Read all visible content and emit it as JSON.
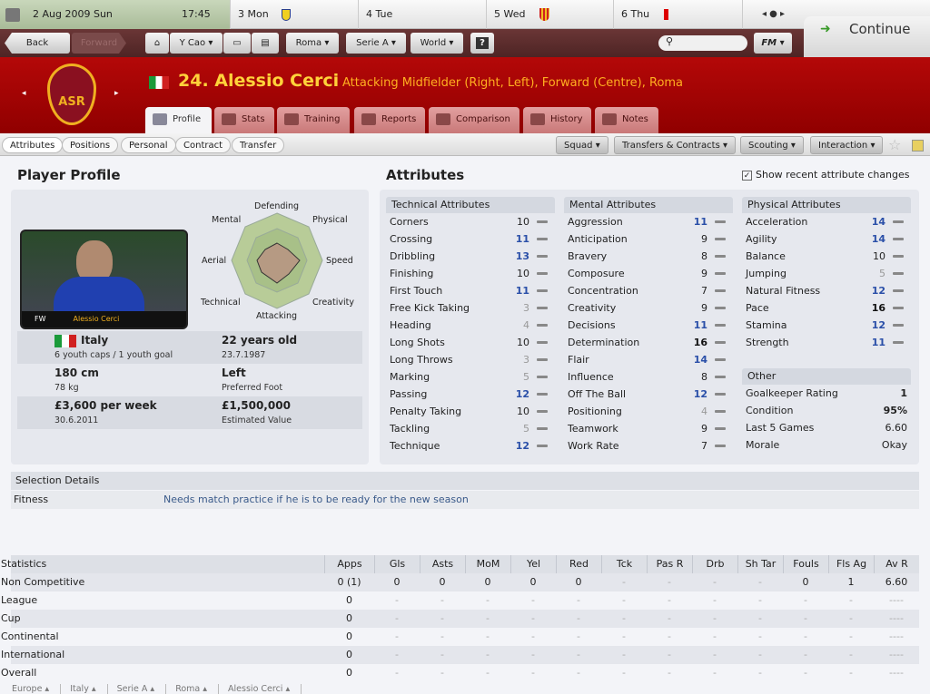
{
  "topbar": {
    "date": "2 Aug 2009  Sun",
    "time": "17:45",
    "days": [
      "3 Mon",
      "4 Tue",
      "5 Wed",
      "6 Thu"
    ],
    "continue": "Continue"
  },
  "nav": {
    "back": "Back",
    "forward": "Forward",
    "manager": "Y Cao",
    "club": "Roma",
    "league": "Serie A",
    "world": "World",
    "help": "?",
    "fm": "FM"
  },
  "player": {
    "title": "24. Alessio Cerci",
    "position": "Attacking Midfielder (Right, Left), Forward (Centre), Roma",
    "card_name": "Alessio Cerci",
    "card_pos": "FW"
  },
  "tabs": [
    "Profile",
    "Stats",
    "Training",
    "Reports",
    "Comparison",
    "History",
    "Notes"
  ],
  "subnav": [
    "Attributes",
    "Positions",
    "Personal",
    "Contract",
    "Transfer"
  ],
  "menus": [
    "Squad",
    "Transfers & Contracts",
    "Scouting",
    "Interaction"
  ],
  "profile": {
    "title": "Player Profile",
    "radar": [
      "Defending",
      "Physical",
      "Speed",
      "Creativity",
      "Attacking",
      "Technical",
      "Aerial",
      "Mental"
    ],
    "nation": "Italy",
    "caps": "6 youth caps / 1 youth goal",
    "age": "22 years old",
    "dob": "23.7.1987",
    "height": "180 cm",
    "weight": "78 kg",
    "foot": "Left",
    "foot_label": "Preferred Foot",
    "wage": "£3,600 per week",
    "contract": "30.6.2011",
    "value": "£1,500,000",
    "value_label": "Estimated Value"
  },
  "attributes": {
    "title": "Attributes",
    "show_changes": "Show recent attribute changes",
    "show_changes_checked": true,
    "technical": {
      "title": "Technical Attributes",
      "rows": [
        [
          "Corners",
          10
        ],
        [
          "Crossing",
          11
        ],
        [
          "Dribbling",
          13
        ],
        [
          "Finishing",
          10
        ],
        [
          "First Touch",
          11
        ],
        [
          "Free Kick Taking",
          3
        ],
        [
          "Heading",
          4
        ],
        [
          "Long Shots",
          10
        ],
        [
          "Long Throws",
          3
        ],
        [
          "Marking",
          5
        ],
        [
          "Passing",
          12
        ],
        [
          "Penalty Taking",
          10
        ],
        [
          "Tackling",
          5
        ],
        [
          "Technique",
          12
        ]
      ]
    },
    "mental": {
      "title": "Mental Attributes",
      "rows": [
        [
          "Aggression",
          11
        ],
        [
          "Anticipation",
          9
        ],
        [
          "Bravery",
          8
        ],
        [
          "Composure",
          9
        ],
        [
          "Concentration",
          7
        ],
        [
          "Creativity",
          9
        ],
        [
          "Decisions",
          11
        ],
        [
          "Determination",
          16
        ],
        [
          "Flair",
          14
        ],
        [
          "Influence",
          8
        ],
        [
          "Off The Ball",
          12
        ],
        [
          "Positioning",
          4
        ],
        [
          "Teamwork",
          9
        ],
        [
          "Work Rate",
          7
        ]
      ]
    },
    "physical": {
      "title": "Physical Attributes",
      "rows": [
        [
          "Acceleration",
          14
        ],
        [
          "Agility",
          14
        ],
        [
          "Balance",
          10
        ],
        [
          "Jumping",
          5
        ],
        [
          "Natural Fitness",
          12
        ],
        [
          "Pace",
          16
        ],
        [
          "Stamina",
          12
        ],
        [
          "Strength",
          11
        ]
      ]
    },
    "other": {
      "title": "Other",
      "rows": [
        [
          "Goalkeeper Rating",
          "1"
        ],
        [
          "Condition",
          "95%"
        ],
        [
          "Last 5 Games",
          "6.60"
        ],
        [
          "Morale",
          "Okay"
        ]
      ]
    }
  },
  "selection": {
    "title": "Selection Details",
    "label": "Fitness",
    "text": "Needs match practice if he is to be ready for the new season"
  },
  "stats": {
    "headers": [
      "Statistics",
      "Apps",
      "Gls",
      "Asts",
      "MoM",
      "Yel",
      "Red",
      "Tck",
      "Pas R",
      "Drb",
      "Sh Tar",
      "Fouls",
      "Fls Ag",
      "Av R"
    ],
    "rows": [
      [
        "Non Competitive",
        "0 (1)",
        "0",
        "0",
        "0",
        "0",
        "0",
        "-",
        "-",
        "-",
        "-",
        "0",
        "1",
        "6.60"
      ],
      [
        "League",
        "0",
        "-",
        "-",
        "-",
        "-",
        "-",
        "-",
        "-",
        "-",
        "-",
        "-",
        "-",
        "----"
      ],
      [
        "Cup",
        "0",
        "-",
        "-",
        "-",
        "-",
        "-",
        "-",
        "-",
        "-",
        "-",
        "-",
        "-",
        "----"
      ],
      [
        "Continental",
        "0",
        "-",
        "-",
        "-",
        "-",
        "-",
        "-",
        "-",
        "-",
        "-",
        "-",
        "-",
        "----"
      ],
      [
        "International",
        "0",
        "-",
        "-",
        "-",
        "-",
        "-",
        "-",
        "-",
        "-",
        "-",
        "-",
        "-",
        "----"
      ],
      [
        "Overall",
        "0",
        "-",
        "-",
        "-",
        "-",
        "-",
        "-",
        "-",
        "-",
        "-",
        "-",
        "-",
        "----"
      ]
    ]
  },
  "breadcrumb": [
    "Europe",
    "Italy",
    "Serie A",
    "Roma",
    "Alessio Cerci"
  ]
}
